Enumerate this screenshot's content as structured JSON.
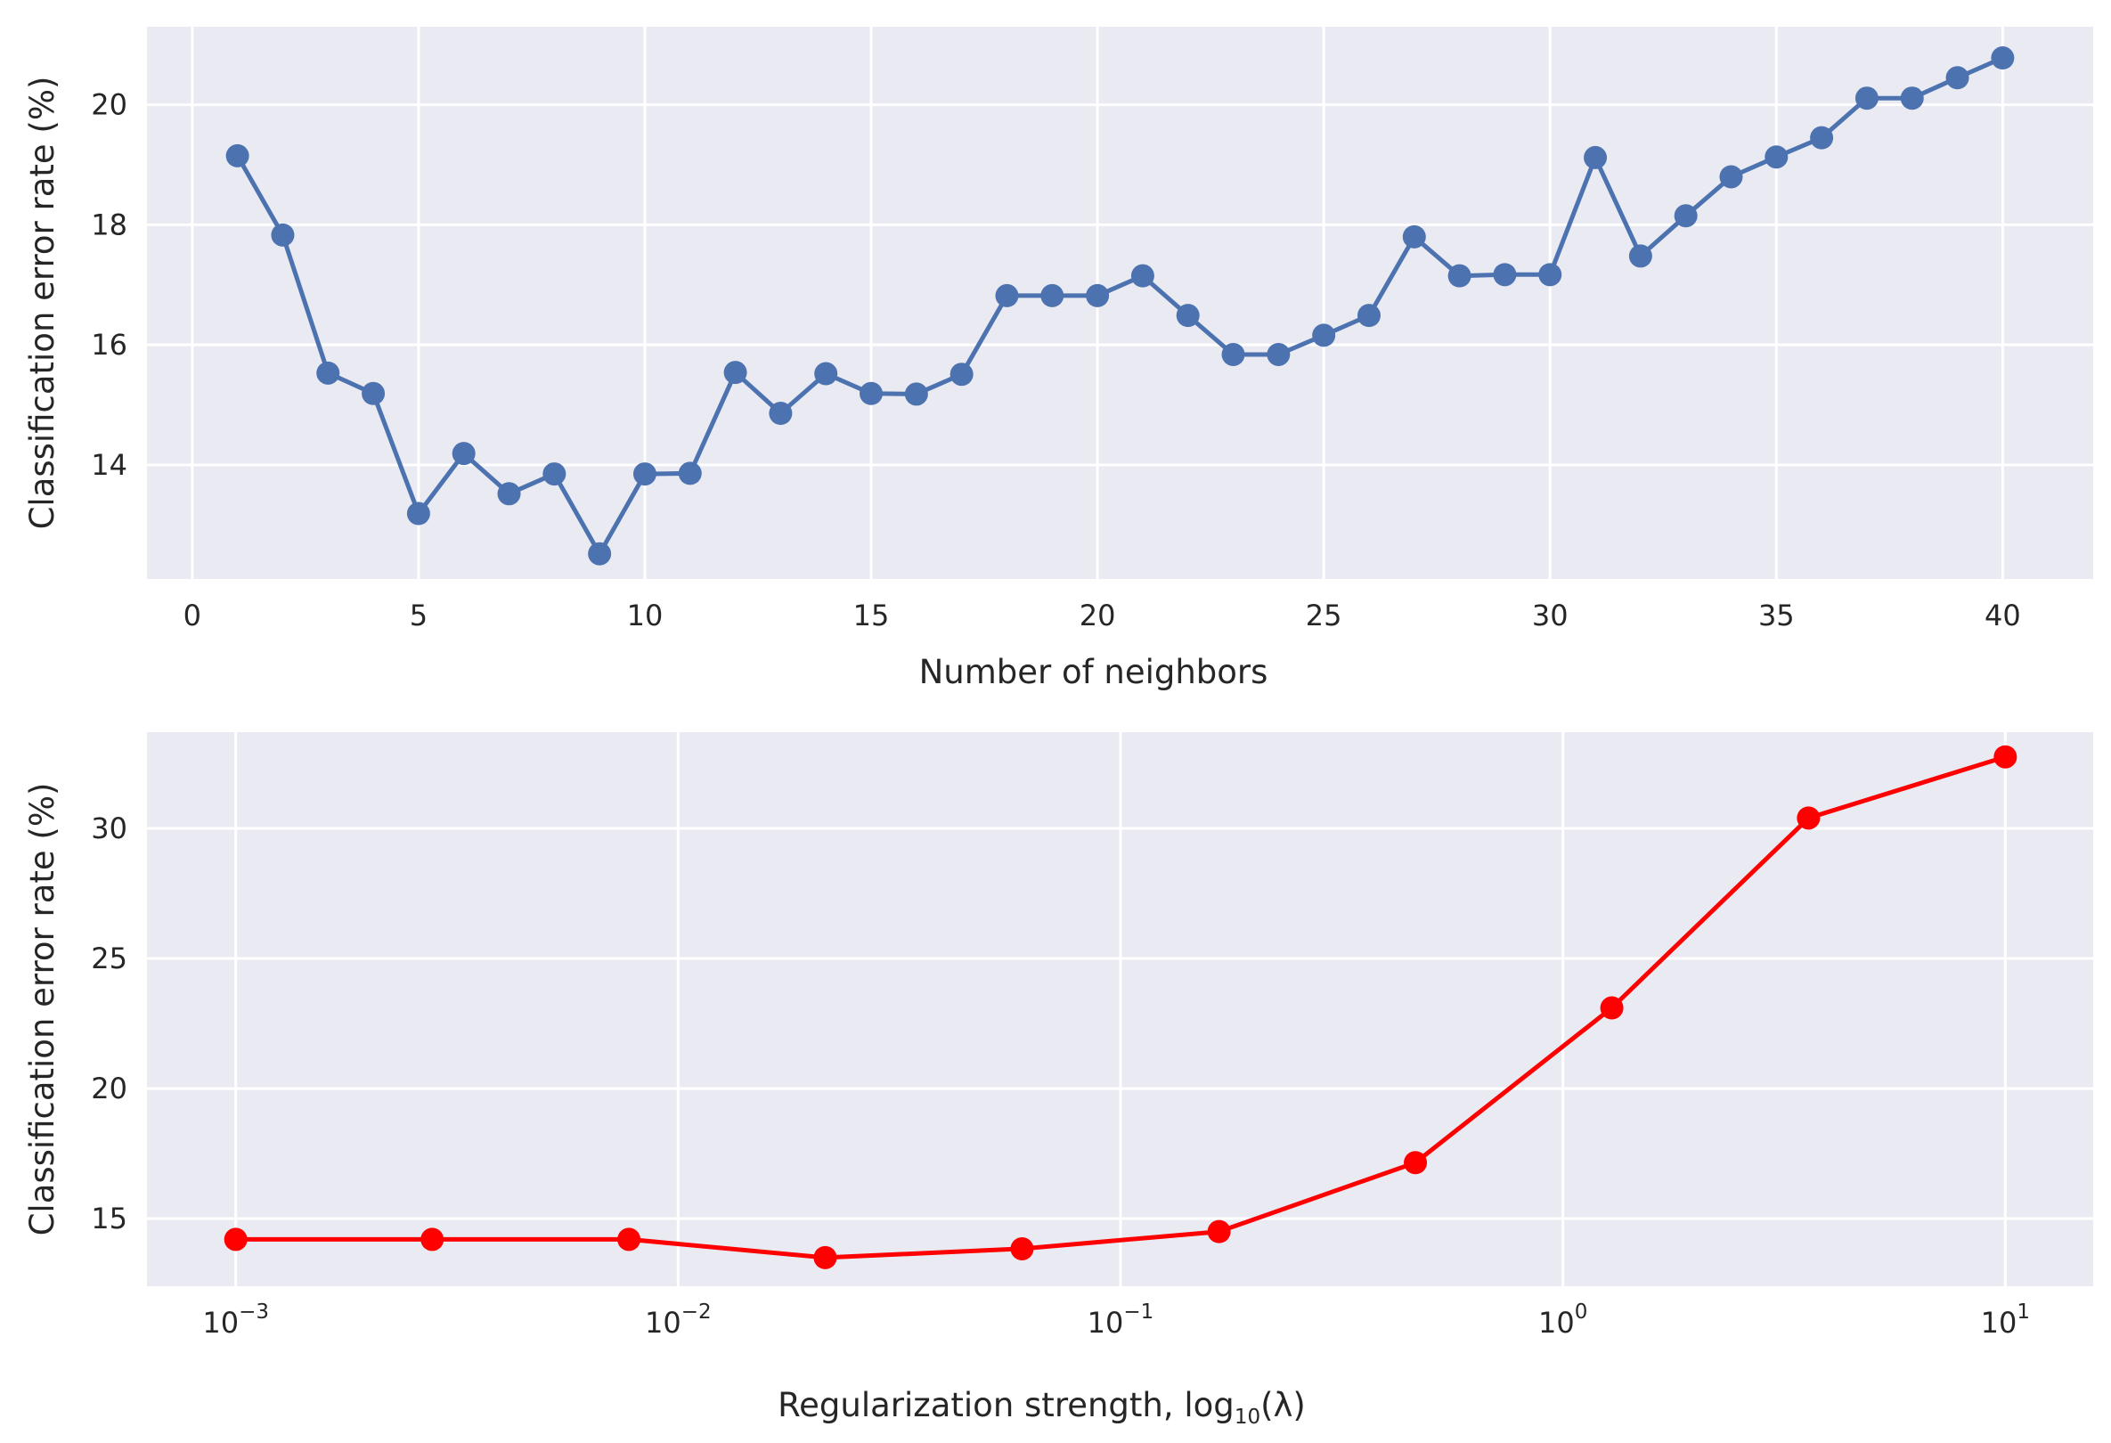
{
  "chart_data": [
    {
      "type": "line",
      "xlabel": "Number of neighbors",
      "ylabel": "Classification error rate (%)",
      "xscale": "linear",
      "xlim": [
        -1,
        42
      ],
      "ylim": [
        12.1,
        21.3
      ],
      "xticks": [
        0,
        5,
        10,
        15,
        20,
        25,
        30,
        35,
        40
      ],
      "yticks": [
        14,
        16,
        18,
        20
      ],
      "grid": true,
      "legend": "none",
      "series": [
        {
          "color": "#4c72b0",
          "marker": "circle",
          "x": [
            1,
            2,
            3,
            4,
            5,
            6,
            7,
            8,
            9,
            10,
            11,
            12,
            13,
            14,
            15,
            16,
            17,
            18,
            19,
            20,
            21,
            22,
            23,
            24,
            25,
            26,
            27,
            28,
            29,
            30,
            31,
            32,
            33,
            34,
            35,
            36,
            37,
            38,
            39,
            40
          ],
          "values": [
            19.15,
            17.83,
            15.53,
            15.19,
            13.19,
            14.19,
            13.52,
            13.85,
            12.52,
            13.85,
            13.86,
            15.54,
            14.86,
            15.52,
            15.19,
            15.18,
            15.51,
            16.82,
            16.82,
            16.82,
            17.15,
            16.49,
            15.84,
            15.84,
            16.16,
            16.49,
            17.8,
            17.15,
            17.17,
            17.17,
            19.12,
            17.48,
            18.15,
            18.8,
            19.13,
            19.45,
            20.11,
            20.11,
            20.45,
            20.78
          ]
        }
      ]
    },
    {
      "type": "line",
      "xlabel_main": "Regularization strength, log",
      "xlabel_sub": "10",
      "xlabel_end": "(λ)",
      "ylabel": "Classification error rate (%)",
      "xscale": "log",
      "xlim": [
        0.00063,
        15.8
      ],
      "ylim": [
        12.4,
        33.7
      ],
      "xticks": [
        {
          "value": 0.001,
          "base": "10",
          "exp": "−3"
        },
        {
          "value": 0.01,
          "base": "10",
          "exp": "−2"
        },
        {
          "value": 0.1,
          "base": "10",
          "exp": "−1"
        },
        {
          "value": 1,
          "base": "10",
          "exp": "0"
        },
        {
          "value": 10,
          "base": "10",
          "exp": "1"
        }
      ],
      "yticks": [
        15,
        20,
        25,
        30
      ],
      "grid": true,
      "legend": "none",
      "series": [
        {
          "color": "#ff0000",
          "marker": "circle",
          "x": [
            0.001,
            0.00278,
            0.00774,
            0.0215,
            0.0599,
            0.167,
            0.464,
            1.29,
            3.59,
            10
          ],
          "values": [
            14.2,
            14.2,
            14.2,
            13.5,
            13.84,
            14.5,
            17.15,
            23.1,
            30.4,
            32.75
          ]
        }
      ]
    }
  ]
}
